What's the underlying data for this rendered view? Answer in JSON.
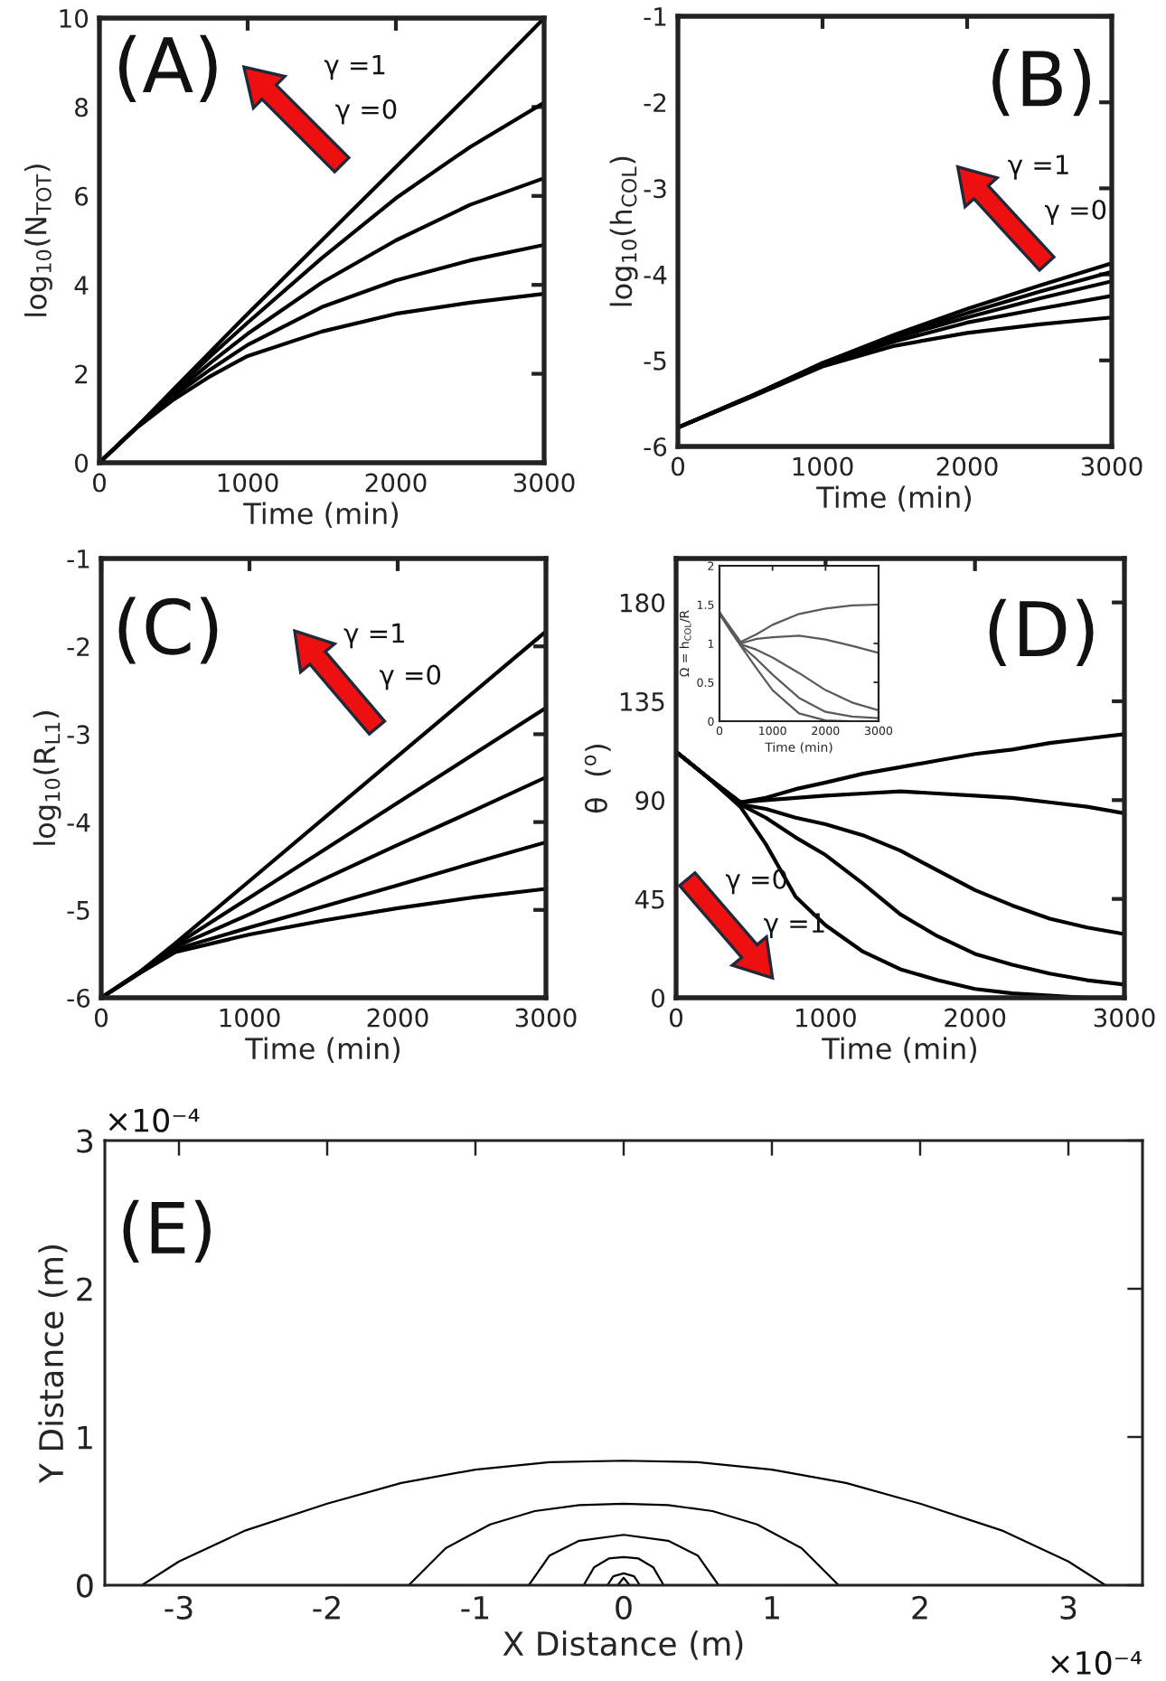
{
  "chart_data": [
    {
      "type": "line",
      "xlabel": "Time (min)",
      "ylabel": "log$_{10}$(N$_{TOT}$)",
      "xlim": [
        0,
        3000
      ],
      "ylim": [
        0,
        10
      ],
      "xticks": [
        0,
        1000,
        2000,
        3000
      ],
      "yticks": [
        0,
        2,
        4,
        6,
        8,
        10
      ],
      "grid": false,
      "line_style": "solid",
      "annotations": [
        "(A)",
        "γ =1",
        "γ =0"
      ],
      "x": [
        0,
        250,
        500,
        750,
        1000,
        1500,
        2000,
        2500,
        3000
      ],
      "series": [
        {
          "color": "#000000",
          "values": [
            0,
            0.8,
            1.65,
            2.5,
            3.35,
            5.0,
            6.65,
            8.3,
            10.0
          ]
        },
        {
          "color": "#000000",
          "values": [
            0,
            0.8,
            1.6,
            2.4,
            3.15,
            4.6,
            5.95,
            7.1,
            8.1
          ]
        },
        {
          "color": "#000000",
          "values": [
            0,
            0.8,
            1.55,
            2.25,
            2.9,
            4.05,
            5.0,
            5.8,
            6.4
          ]
        },
        {
          "color": "#000000",
          "values": [
            0,
            0.8,
            1.5,
            2.1,
            2.65,
            3.5,
            4.1,
            4.55,
            4.9
          ]
        },
        {
          "color": "#000000",
          "values": [
            0,
            0.78,
            1.42,
            1.95,
            2.4,
            2.95,
            3.35,
            3.6,
            3.8
          ]
        }
      ]
    },
    {
      "type": "line",
      "xlabel": "Time (min)",
      "ylabel": "log$_{10}$(h$_{COL}$)",
      "xlim": [
        0,
        3000
      ],
      "ylim": [
        -6,
        -1
      ],
      "xticks": [
        0,
        1000,
        2000,
        3000
      ],
      "yticks": [
        -6,
        -5,
        -4,
        -3,
        -2,
        -1
      ],
      "grid": false,
      "line_style": "solid",
      "annotations": [
        "(B)",
        "γ =1",
        "γ =0"
      ],
      "x": [
        0,
        500,
        1000,
        1500,
        2000,
        2500,
        3000
      ],
      "series": [
        {
          "color": "#000000",
          "values": [
            -5.78,
            -5.42,
            -5.03,
            -4.7,
            -4.4,
            -4.13,
            -3.87
          ]
        },
        {
          "color": "#000000",
          "values": [
            -5.78,
            -5.42,
            -5.03,
            -4.72,
            -4.45,
            -4.2,
            -3.97
          ]
        },
        {
          "color": "#000000",
          "values": [
            -5.78,
            -5.42,
            -5.04,
            -4.74,
            -4.5,
            -4.28,
            -4.08
          ]
        },
        {
          "color": "#000000",
          "values": [
            -5.78,
            -5.42,
            -5.05,
            -4.78,
            -4.56,
            -4.4,
            -4.25
          ]
        },
        {
          "color": "#000000",
          "values": [
            -5.78,
            -5.43,
            -5.07,
            -4.83,
            -4.68,
            -4.58,
            -4.5
          ]
        }
      ]
    },
    {
      "type": "line",
      "xlabel": "Time (min)",
      "ylabel": "log$_{10}$(R$_{L1}$)",
      "xlim": [
        0,
        3000
      ],
      "ylim": [
        -6,
        -1
      ],
      "xticks": [
        0,
        1000,
        2000,
        3000
      ],
      "yticks": [
        -6,
        -5,
        -4,
        -3,
        -2,
        -1
      ],
      "grid": false,
      "line_style": "solid",
      "annotations": [
        "(C)",
        "γ =1",
        "γ =0"
      ],
      "x": [
        0,
        250,
        500,
        1000,
        1500,
        2000,
        2500,
        3000
      ],
      "series": [
        {
          "color": "#000000",
          "values": [
            -6,
            -5.72,
            -5.38,
            -4.67,
            -3.96,
            -3.25,
            -2.54,
            -1.83
          ]
        },
        {
          "color": "#000000",
          "values": [
            -6,
            -5.72,
            -5.4,
            -4.86,
            -4.32,
            -3.78,
            -3.24,
            -2.7
          ]
        },
        {
          "color": "#000000",
          "values": [
            -6,
            -5.72,
            -5.42,
            -5.05,
            -4.65,
            -4.26,
            -3.88,
            -3.49
          ]
        },
        {
          "color": "#000000",
          "values": [
            -6,
            -5.73,
            -5.45,
            -5.2,
            -4.96,
            -4.72,
            -4.47,
            -4.23
          ]
        },
        {
          "color": "#000000",
          "values": [
            -6,
            -5.73,
            -5.48,
            -5.28,
            -5.12,
            -4.98,
            -4.86,
            -4.76
          ]
        }
      ]
    },
    {
      "type": "line",
      "xlabel": "Time (min)",
      "ylabel": "θ  ($^{o}$)",
      "xlim": [
        0,
        3000
      ],
      "ylim": [
        0,
        200
      ],
      "xticks": [
        0,
        1000,
        2000,
        3000
      ],
      "yticks": [
        0,
        45,
        90,
        135,
        180
      ],
      "grid": false,
      "line_style": "solid",
      "annotations": [
        "(D)",
        "γ =0",
        "γ =1"
      ],
      "x": [
        0,
        200,
        430,
        600,
        800,
        1000,
        1250,
        1500,
        1750,
        2000,
        2250,
        2500,
        2750,
        3000
      ],
      "series": [
        {
          "color": "#000000",
          "values": [
            112,
            101,
            89,
            91,
            95,
            98,
            102,
            105,
            108,
            111,
            113,
            116,
            118,
            120
          ]
        },
        {
          "color": "#000000",
          "values": [
            112,
            101,
            89,
            90,
            91,
            92,
            93,
            94,
            93,
            92,
            91,
            89,
            87,
            84
          ]
        },
        {
          "color": "#000000",
          "values": [
            112,
            101,
            88,
            86,
            82,
            79,
            74,
            67,
            58,
            49,
            42,
            36,
            32,
            29
          ]
        },
        {
          "color": "#000000",
          "values": [
            112,
            101,
            88,
            82,
            73,
            65,
            52,
            38,
            28,
            20,
            15,
            11,
            8,
            6
          ]
        },
        {
          "color": "#000000",
          "values": [
            112,
            101,
            87,
            70,
            46,
            33,
            21,
            13,
            8,
            4,
            2,
            1,
            0,
            0
          ]
        }
      ]
    },
    {
      "type": "line",
      "xlabel": "Time (min)",
      "ylabel": "Ω = h$_{COL}$/R",
      "xlim": [
        0,
        3000
      ],
      "ylim": [
        0,
        2
      ],
      "xticks": [
        0,
        1000,
        2000,
        3000
      ],
      "yticks": [
        0,
        0.5,
        1,
        1.5,
        2
      ],
      "grid": false,
      "line_style": "solid",
      "x": [
        0,
        200,
        400,
        700,
        1000,
        1500,
        2000,
        2500,
        3000
      ],
      "series": [
        {
          "color": "#5a5a5a",
          "values": [
            1.4,
            1.21,
            1.02,
            1.12,
            1.24,
            1.38,
            1.45,
            1.49,
            1.5
          ]
        },
        {
          "color": "#5a5a5a",
          "values": [
            1.4,
            1.2,
            1.0,
            1.06,
            1.08,
            1.1,
            1.05,
            0.97,
            0.88
          ]
        },
        {
          "color": "#5a5a5a",
          "values": [
            1.4,
            1.19,
            0.99,
            0.92,
            0.82,
            0.62,
            0.4,
            0.24,
            0.14
          ]
        },
        {
          "color": "#5a5a5a",
          "values": [
            1.39,
            1.18,
            0.98,
            0.8,
            0.6,
            0.3,
            0.12,
            0.06,
            0.04
          ]
        },
        {
          "color": "#5a5a5a",
          "x": [
            0,
            200,
            400,
            700,
            1000,
            1500,
            2000,
            2500
          ],
          "values": [
            1.38,
            1.17,
            0.97,
            0.68,
            0.4,
            0.1,
            0.01,
            0
          ]
        }
      ]
    },
    {
      "type": "line",
      "xlabel": "X Distance (m)",
      "ylabel": "Y Distance (m)",
      "xlim": [
        -3.5,
        3.5
      ],
      "ylim": [
        0,
        3
      ],
      "xticks": [
        -3,
        -2,
        -1,
        0,
        1,
        2,
        3
      ],
      "yticks": [
        0,
        1,
        2,
        3
      ],
      "grid": false,
      "line_style": "solid",
      "annotations": [
        "(E)",
        "×10⁻⁴",
        "×10⁻⁴"
      ],
      "series": [
        {
          "color": "#000000",
          "x": [
            -3.25,
            -3.0,
            -2.55,
            -2.0,
            -1.5,
            -1.0,
            -0.5,
            0,
            0.5,
            1.0,
            1.5,
            2.0,
            2.55,
            3.0,
            3.25
          ],
          "values": [
            0,
            0.16,
            0.37,
            0.55,
            0.69,
            0.78,
            0.83,
            0.84,
            0.83,
            0.78,
            0.69,
            0.55,
            0.37,
            0.16,
            0
          ]
        },
        {
          "color": "#000000",
          "x": [
            -1.45,
            -1.2,
            -0.9,
            -0.6,
            -0.3,
            0,
            0.3,
            0.6,
            0.9,
            1.2,
            1.45
          ],
          "values": [
            0,
            0.25,
            0.41,
            0.5,
            0.54,
            0.55,
            0.54,
            0.5,
            0.41,
            0.25,
            0
          ]
        },
        {
          "color": "#000000",
          "x": [
            -0.64,
            -0.5,
            -0.3,
            0,
            0.3,
            0.5,
            0.64
          ],
          "values": [
            0,
            0.2,
            0.3,
            0.34,
            0.3,
            0.2,
            0
          ]
        },
        {
          "color": "#000000",
          "x": [
            -0.27,
            -0.2,
            -0.1,
            0,
            0.1,
            0.2,
            0.27
          ],
          "values": [
            0,
            0.12,
            0.18,
            0.19,
            0.18,
            0.12,
            0
          ]
        },
        {
          "color": "#000000",
          "x": [
            -0.11,
            -0.07,
            0,
            0.07,
            0.11
          ],
          "values": [
            0,
            0.06,
            0.08,
            0.06,
            0
          ]
        },
        {
          "color": "#000000",
          "x": [
            -0.04,
            0,
            0.04
          ],
          "values": [
            0,
            0.05,
            0
          ]
        }
      ]
    }
  ]
}
